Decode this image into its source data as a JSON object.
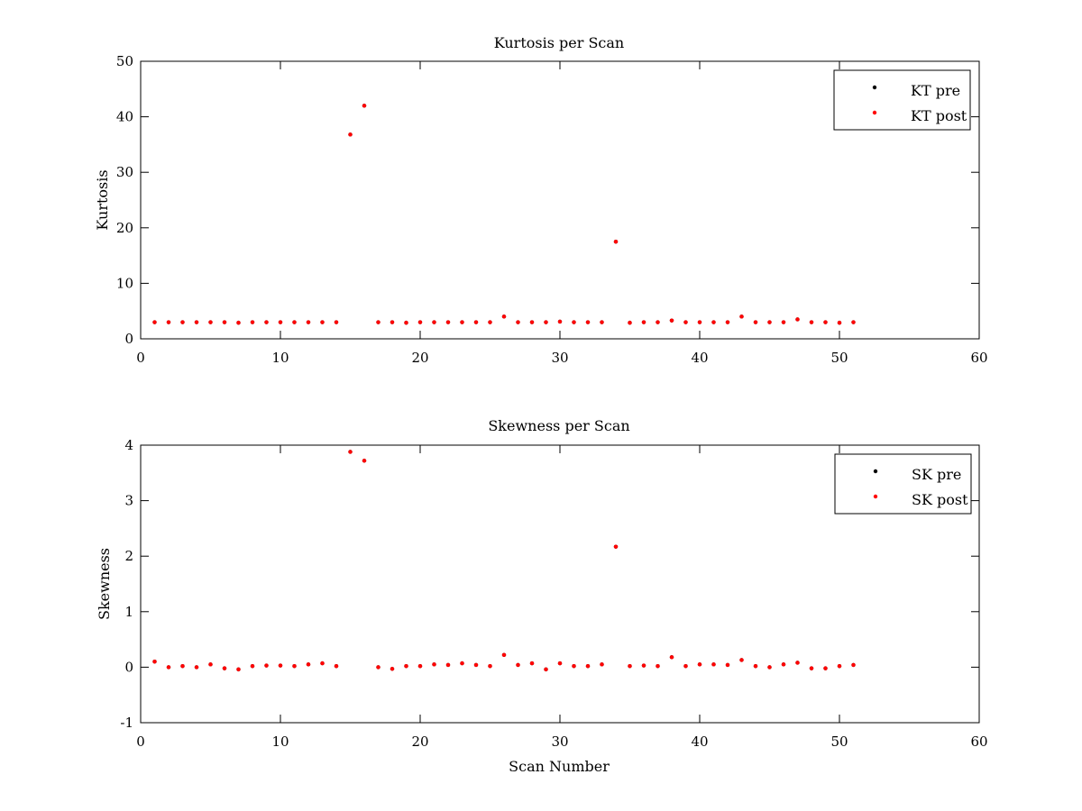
{
  "chart_data": [
    {
      "type": "scatter",
      "title": "Kurtosis per Scan",
      "xlabel": "",
      "ylabel": "Kurtosis",
      "xlim": [
        0,
        60
      ],
      "ylim": [
        0,
        50
      ],
      "xticks": [
        0,
        10,
        20,
        30,
        40,
        50,
        60
      ],
      "yticks": [
        0,
        10,
        20,
        30,
        40,
        50
      ],
      "grid": false,
      "legend_position": "top-right",
      "x": [
        1,
        2,
        3,
        4,
        5,
        6,
        7,
        8,
        9,
        10,
        11,
        12,
        13,
        14,
        15,
        16,
        17,
        18,
        19,
        20,
        21,
        22,
        23,
        24,
        25,
        26,
        27,
        28,
        29,
        30,
        31,
        32,
        33,
        34,
        35,
        36,
        37,
        38,
        39,
        40,
        41,
        42,
        43,
        44,
        45,
        46,
        47,
        48,
        49,
        50,
        51
      ],
      "series": [
        {
          "name": "KT pre",
          "color": "#000000",
          "values": [
            3.0,
            3.0,
            3.0,
            3.0,
            3.0,
            3.0,
            2.9,
            3.0,
            3.0,
            3.0,
            3.0,
            3.0,
            3.0,
            3.0,
            36.8,
            42.0,
            3.0,
            3.0,
            2.9,
            3.0,
            3.0,
            3.0,
            3.0,
            3.0,
            3.0,
            4.0,
            3.0,
            3.0,
            3.0,
            3.1,
            3.0,
            3.0,
            3.0,
            17.5,
            2.9,
            3.0,
            3.0,
            3.3,
            3.0,
            3.0,
            3.0,
            3.0,
            4.0,
            3.0,
            3.0,
            3.0,
            3.5,
            3.0,
            3.0,
            2.9,
            3.0
          ]
        },
        {
          "name": "KT post",
          "color": "#ff0000",
          "values": [
            3.0,
            3.0,
            3.0,
            3.0,
            3.0,
            3.0,
            2.9,
            3.0,
            3.0,
            3.0,
            3.0,
            3.0,
            3.0,
            3.0,
            36.8,
            42.0,
            3.0,
            3.0,
            2.9,
            3.0,
            3.0,
            3.0,
            3.0,
            3.0,
            3.0,
            4.0,
            3.0,
            3.0,
            3.0,
            3.1,
            3.0,
            3.0,
            3.0,
            17.5,
            2.9,
            3.0,
            3.0,
            3.3,
            3.0,
            3.0,
            3.0,
            3.0,
            4.0,
            3.0,
            3.0,
            3.0,
            3.5,
            3.0,
            3.0,
            2.9,
            3.0
          ]
        }
      ]
    },
    {
      "type": "scatter",
      "title": "Skewness per Scan",
      "xlabel": "Scan Number",
      "ylabel": "Skewness",
      "xlim": [
        0,
        60
      ],
      "ylim": [
        -1,
        4
      ],
      "xticks": [
        0,
        10,
        20,
        30,
        40,
        50,
        60
      ],
      "yticks": [
        -1,
        0,
        1,
        2,
        3,
        4
      ],
      "grid": false,
      "legend_position": "top-right",
      "x": [
        1,
        2,
        3,
        4,
        5,
        6,
        7,
        8,
        9,
        10,
        11,
        12,
        13,
        14,
        15,
        16,
        17,
        18,
        19,
        20,
        21,
        22,
        23,
        24,
        25,
        26,
        27,
        28,
        29,
        30,
        31,
        32,
        33,
        34,
        35,
        36,
        37,
        38,
        39,
        40,
        41,
        42,
        43,
        44,
        45,
        46,
        47,
        48,
        49,
        50,
        51
      ],
      "series": [
        {
          "name": "SK pre",
          "color": "#000000",
          "values": [
            0.1,
            0.0,
            0.02,
            0.0,
            0.05,
            -0.02,
            -0.04,
            0.02,
            0.03,
            0.03,
            0.02,
            0.05,
            0.07,
            0.02,
            3.88,
            3.72,
            0.0,
            -0.03,
            0.02,
            0.02,
            0.05,
            0.04,
            0.07,
            0.04,
            0.02,
            0.22,
            0.04,
            0.07,
            -0.04,
            0.07,
            0.02,
            0.02,
            0.05,
            2.17,
            0.02,
            0.03,
            0.02,
            0.18,
            0.02,
            0.05,
            0.05,
            0.04,
            0.13,
            0.02,
            0.0,
            0.05,
            0.08,
            -0.02,
            -0.02,
            0.02,
            0.04
          ]
        },
        {
          "name": "SK post",
          "color": "#ff0000",
          "values": [
            0.1,
            0.0,
            0.02,
            0.0,
            0.05,
            -0.02,
            -0.04,
            0.02,
            0.03,
            0.03,
            0.02,
            0.05,
            0.07,
            0.02,
            3.88,
            3.72,
            0.0,
            -0.03,
            0.02,
            0.02,
            0.05,
            0.04,
            0.07,
            0.04,
            0.02,
            0.22,
            0.04,
            0.07,
            -0.04,
            0.07,
            0.02,
            0.02,
            0.05,
            2.17,
            0.02,
            0.03,
            0.02,
            0.18,
            0.02,
            0.05,
            0.05,
            0.04,
            0.13,
            0.02,
            0.0,
            0.05,
            0.08,
            -0.02,
            -0.02,
            0.02,
            0.04
          ]
        }
      ]
    }
  ]
}
